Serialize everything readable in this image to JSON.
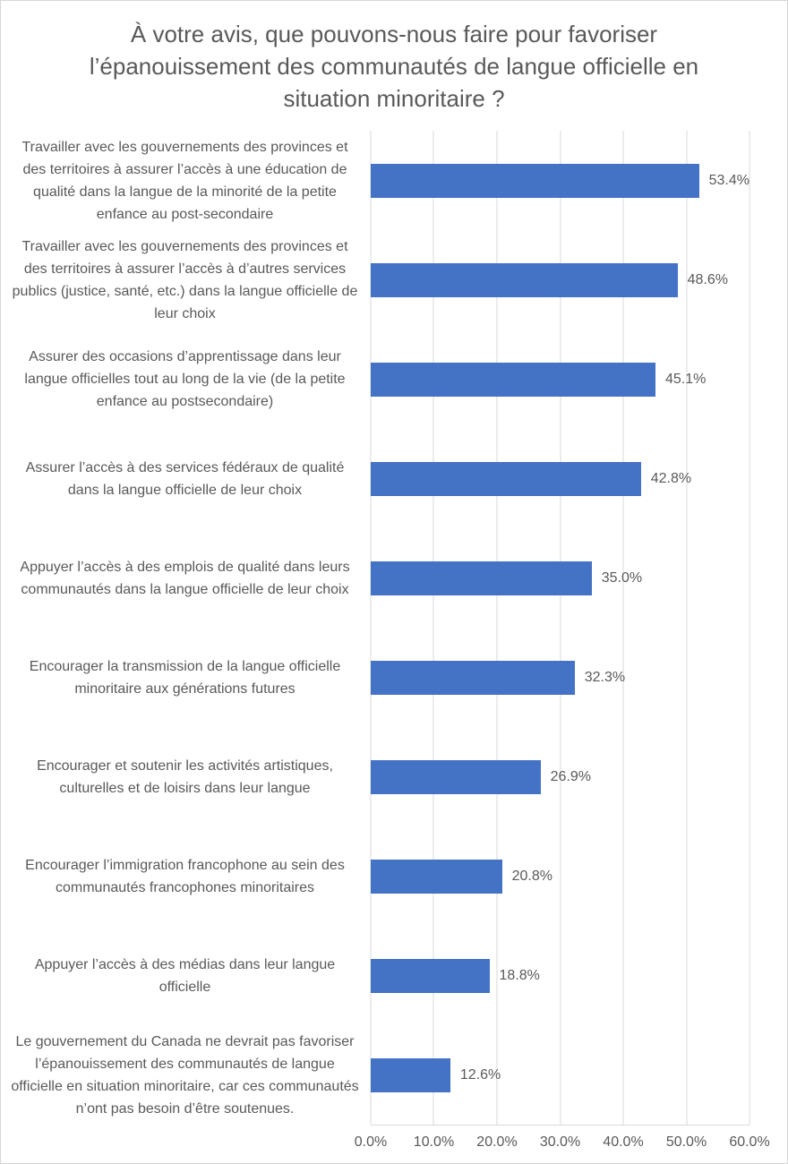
{
  "chart_data": {
    "type": "bar",
    "orientation": "horizontal",
    "title": "À votre avis, que pouvons-nous faire pour favoriser l’épanouissement des communautés de langue officielle en situation minoritaire ?",
    "categories": [
      "Travailler avec les gouvernements des provinces et des territoires à assurer l’accès à une éducation de qualité dans la langue de la minorité de la petite enfance au post-secondaire",
      "Travailler avec les gouvernements des provinces et des territoires à assurer l’accès à d’autres services publics (justice, santé, etc.) dans la langue officielle de leur choix",
      "Assurer des occasions d’apprentissage dans leur langue officielles tout au long de la vie (de la petite enfance au postsecondaire)",
      "Assurer l’accès à des services fédéraux de qualité dans la langue officielle de leur choix",
      "Appuyer l’accès à des emplois de qualité dans leurs communautés dans la langue officielle de leur choix",
      "Encourager la transmission de la langue officielle minoritaire aux générations futures",
      "Encourager et soutenir les activités artistiques, culturelles et de loisirs dans leur langue",
      "Encourager l’immigration francophone au sein des communautés francophones minoritaires",
      "Appuyer l’accès à des médias dans leur langue officielle",
      "Le gouvernement du Canada ne devrait pas favoriser l’épanouissement des communautés de langue officielle en situation minoritaire, car ces communautés n’ont pas besoin d’être soutenues."
    ],
    "values": [
      53.4,
      48.6,
      45.1,
      42.8,
      35.0,
      32.3,
      26.9,
      20.8,
      18.8,
      12.6
    ],
    "value_labels": [
      "53.4%",
      "48.6%",
      "45.1%",
      "42.8%",
      "35.0%",
      "32.3%",
      "26.9%",
      "20.8%",
      "18.8%",
      "12.6%"
    ],
    "x_ticks": [
      "0.0%",
      "10.0%",
      "20.0%",
      "30.0%",
      "40.0%",
      "50.0%",
      "60.0%"
    ],
    "xlim": [
      0,
      60
    ],
    "bar_color": "#4472C4",
    "text_color": "#595959",
    "gridline_color": "#D9D9D9",
    "grid": "vertical",
    "legend": "none"
  }
}
